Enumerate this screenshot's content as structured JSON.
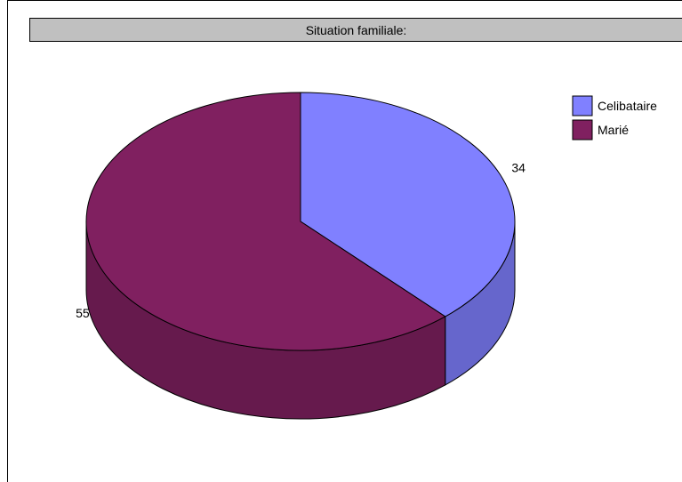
{
  "chart_data": {
    "type": "pie",
    "title": "Situation familiale:",
    "categories": [
      "Celibataire",
      "Marié"
    ],
    "values": [
      34,
      55
    ],
    "colors": {
      "Celibataire": "#8080ff",
      "Marié": "#802060"
    },
    "side_colors": {
      "Celibataire": "#6666cc",
      "Marié": "#661a4d"
    },
    "legend_position": "top-right",
    "style": "3d-pie"
  }
}
